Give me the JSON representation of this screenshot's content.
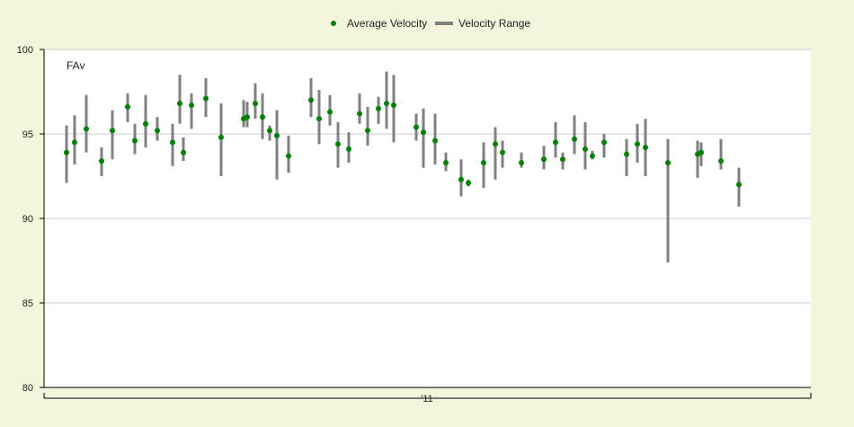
{
  "legend": {
    "avg_label": "Average Velocity",
    "range_label": "Velocity Range"
  },
  "colors": {
    "background": "#f5f5dc",
    "plot_background": "#ffffff",
    "grid": "#cccccc",
    "avg_point": "#008000",
    "range_bar": "#808080"
  },
  "chart_data": {
    "type": "scatter",
    "title": "",
    "inner_label": "FAv",
    "xlabel": "",
    "ylabel": "",
    "x_tick_label": "'11",
    "ylim": [
      80,
      100
    ],
    "y_ticks": [
      "100",
      "95",
      "90",
      "85",
      "80"
    ],
    "grid": true,
    "legend_position": "top-center",
    "series": [
      {
        "name": "Average Velocity",
        "values": [
          93.9,
          94.5,
          95.3,
          93.4,
          95.2,
          96.6,
          94.6,
          95.6,
          95.2,
          94.5,
          96.8,
          93.9,
          96.7,
          97.1,
          94.8,
          95.9,
          96.0,
          96.8,
          96.0,
          95.2,
          94.9,
          93.7,
          97.0,
          95.9,
          96.3,
          94.4,
          94.1,
          96.2,
          95.2,
          96.5,
          96.8,
          96.7,
          95.4,
          95.1,
          94.6,
          93.3,
          92.3,
          92.1,
          93.3,
          94.4,
          93.9,
          93.3,
          93.5,
          94.5,
          93.5,
          94.7,
          94.1,
          93.7,
          94.5,
          93.8,
          94.4,
          94.2,
          93.3,
          93.8,
          93.9,
          93.4,
          92.0
        ]
      },
      {
        "name": "Velocity Range",
        "low": [
          92.1,
          93.2,
          93.9,
          92.5,
          93.5,
          95.7,
          93.8,
          94.2,
          94.6,
          93.1,
          95.6,
          93.4,
          95.3,
          96.0,
          92.5,
          95.4,
          95.4,
          95.9,
          94.7,
          94.6,
          92.3,
          92.7,
          96.0,
          94.4,
          95.5,
          93.0,
          93.3,
          95.6,
          94.3,
          95.6,
          95.3,
          94.5,
          94.6,
          93.0,
          93.2,
          92.8,
          91.3,
          91.9,
          91.8,
          92.3,
          93.0,
          93.0,
          92.9,
          93.6,
          92.9,
          93.8,
          92.9,
          93.5,
          93.6,
          92.5,
          93.3,
          92.5,
          87.4,
          92.4,
          93.1,
          92.9,
          90.7
        ],
        "high": [
          95.5,
          96.1,
          97.3,
          94.2,
          96.4,
          97.4,
          95.6,
          97.3,
          96.0,
          95.6,
          98.5,
          94.8,
          97.4,
          98.3,
          96.8,
          97.0,
          96.9,
          98.0,
          97.4,
          95.5,
          96.4,
          94.9,
          98.3,
          97.6,
          97.3,
          95.7,
          95.1,
          97.4,
          96.6,
          97.2,
          98.7,
          98.5,
          96.2,
          96.5,
          96.2,
          93.9,
          93.5,
          92.3,
          94.5,
          95.4,
          94.6,
          93.9,
          94.3,
          95.7,
          93.9,
          96.1,
          95.7,
          94.0,
          95.0,
          94.7,
          95.6,
          95.9,
          94.7,
          94.6,
          94.5,
          94.7,
          93.0
        ]
      }
    ]
  }
}
